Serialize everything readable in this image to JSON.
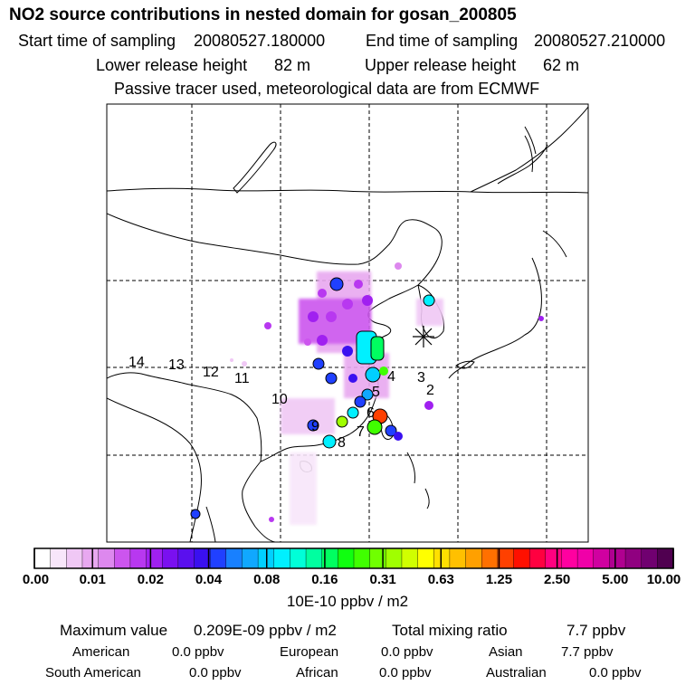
{
  "header": {
    "title": "NO2 source contributions in nested domain for gosan_200805",
    "start_label": "Start time of sampling",
    "start_value": "20080527.180000",
    "end_label": "End time of sampling",
    "end_value": "20080527.210000",
    "lower_label": "Lower release height",
    "lower_value": "82 m",
    "upper_label": "Upper release height",
    "upper_value": "62 m",
    "note": "Passive tracer used, meteorological data are from ECMWF"
  },
  "map": {
    "region_labels": [
      "14",
      "13",
      "12",
      "11",
      "10",
      "9",
      "8",
      "7",
      "6",
      "5",
      "4",
      "3",
      "2"
    ],
    "receptor_marker": "asterisk-icon",
    "grid": "dashed"
  },
  "colorbar": {
    "ticks": [
      "0.00",
      "0.01",
      "0.02",
      "0.04",
      "0.08",
      "0.16",
      "0.31",
      "0.63",
      "1.25",
      "2.50",
      "5.00",
      "10.00"
    ],
    "unit": "10E-10 ppbv / m2",
    "colors": [
      "#ffffff",
      "#f8e6fa",
      "#f0c8f5",
      "#e8a8f0",
      "#dd88ee",
      "#cc55ee",
      "#b838f0",
      "#a020f0",
      "#7a10f0",
      "#5a10ee",
      "#3a10f0",
      "#2040ff",
      "#1880ff",
      "#10a8ff",
      "#00d0ff",
      "#00f0ff",
      "#00ffd8",
      "#00ffa0",
      "#00ff60",
      "#10ff10",
      "#40ff00",
      "#70ff00",
      "#a0ff00",
      "#d0ff00",
      "#ffff00",
      "#ffe000",
      "#ffc000",
      "#ffa000",
      "#ff7000",
      "#ff4000",
      "#ff1000",
      "#ff0040",
      "#ff0080",
      "#ff00a0",
      "#f000a8",
      "#d000a0",
      "#b00090",
      "#900080",
      "#700070",
      "#500050"
    ]
  },
  "stats": {
    "max_label": "Maximum value",
    "max_value": "0.209E-09 ppbv / m2",
    "total_label": "Total mixing ratio",
    "total_value": "7.7 ppbv",
    "regions": [
      {
        "name": "American",
        "value": "0.0 ppbv"
      },
      {
        "name": "European",
        "value": "0.0 ppbv"
      },
      {
        "name": "Asian",
        "value": "7.7 ppbv"
      },
      {
        "name": "South American",
        "value": "0.0 ppbv"
      },
      {
        "name": "African",
        "value": "0.0 ppbv"
      },
      {
        "name": "Australian",
        "value": "0.0 ppbv"
      }
    ]
  }
}
